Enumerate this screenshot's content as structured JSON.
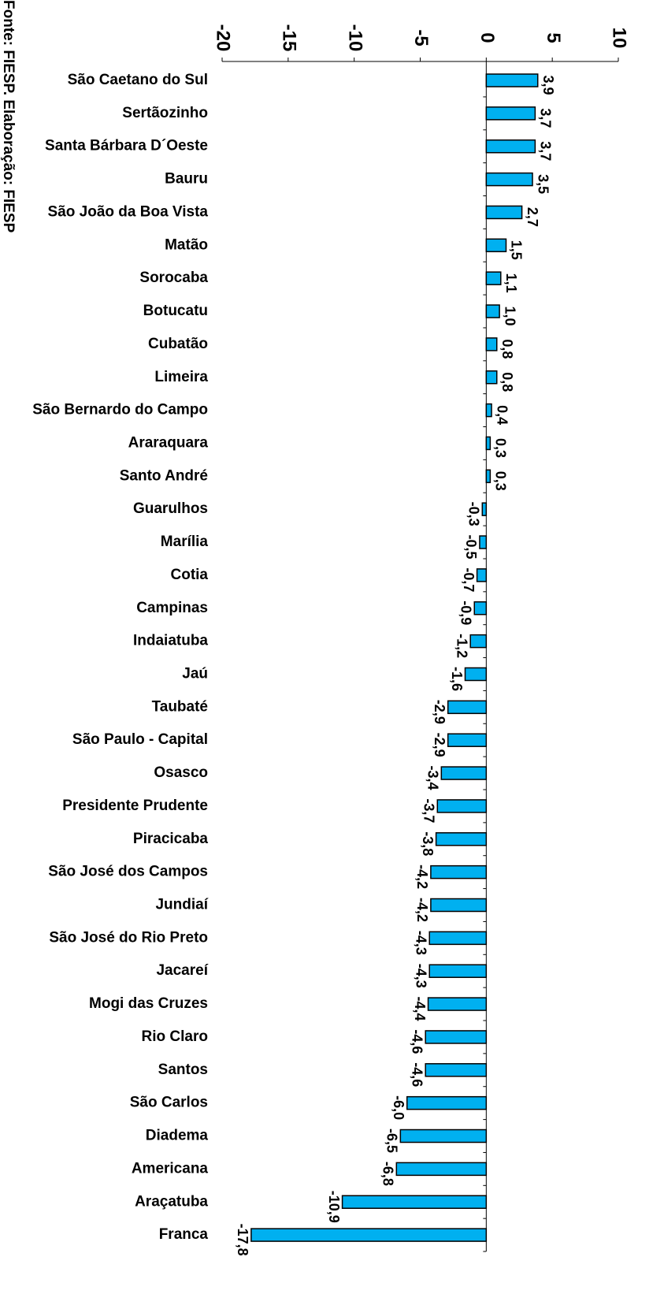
{
  "chart_data": {
    "type": "bar",
    "orientation": "horizontal",
    "source": "Fonte: FIESP. Elaboração: FIESP",
    "categories": [
      "São Caetano do Sul",
      "Sertãozinho",
      "Santa Bárbara D´Oeste",
      "Bauru",
      "São João da Boa Vista",
      "Matão",
      "Sorocaba",
      "Botucatu",
      "Cubatão",
      "Limeira",
      "São Bernardo do Campo",
      "Araraquara",
      "Santo André",
      "Guarulhos",
      "Marília",
      "Cotia",
      "Campinas",
      "Indaiatuba",
      "Jaú",
      "Taubaté",
      "São Paulo - Capital",
      "Osasco",
      "Presidente Prudente",
      "Piracicaba",
      "São José dos Campos",
      "Jundiaí",
      "São José do Rio Preto",
      "Jacareí",
      "Mogi das Cruzes",
      "Rio Claro",
      "Santos",
      "São Carlos",
      "Diadema",
      "Americana",
      "Araçatuba",
      "Franca"
    ],
    "values": [
      3.9,
      3.7,
      3.7,
      3.5,
      2.7,
      1.5,
      1.1,
      1.0,
      0.8,
      0.8,
      0.4,
      0.3,
      0.3,
      -0.3,
      -0.5,
      -0.7,
      -0.9,
      -1.2,
      -1.6,
      -2.9,
      -2.9,
      -3.4,
      -3.7,
      -3.8,
      -4.2,
      -4.2,
      -4.3,
      -4.3,
      -4.4,
      -4.6,
      -4.6,
      -6.0,
      -6.5,
      -6.8,
      -10.9,
      -17.8
    ],
    "value_labels": [
      "3,9",
      "3,7",
      "3,7",
      "3,5",
      "2,7",
      "1,5",
      "1,1",
      "1,0",
      "0,8",
      "0,8",
      "0,4",
      "0,3",
      "0,3",
      "-0,3",
      "-0,5",
      "-0,7",
      "-0,9",
      "-1,2",
      "-1,6",
      "-2,9",
      "-2,9",
      "-3,4",
      "-3,7",
      "-3,8",
      "-4,2",
      "-4,2",
      "-4,3",
      "-4,3",
      "-4,4",
      "-4,6",
      "-4,6",
      "-6,0",
      "-6,5",
      "-6,8",
      "-10,9",
      "-17,8"
    ],
    "color": "#00b0f0",
    "xlim": [
      -20,
      10
    ],
    "xticks": [
      -20,
      -15,
      -10,
      -5,
      0,
      5,
      10
    ]
  }
}
